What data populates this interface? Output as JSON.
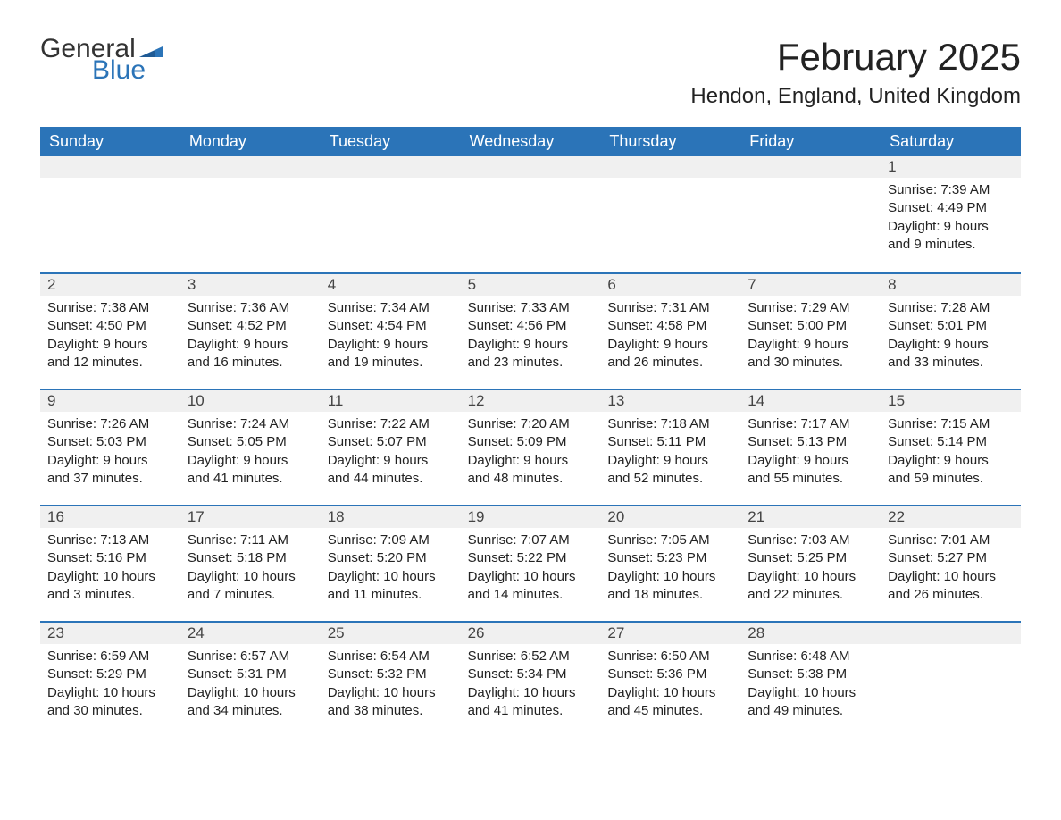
{
  "logo": {
    "text1": "General",
    "text2": "Blue",
    "flag_color": "#2b74b8"
  },
  "title": "February 2025",
  "location": "Hendon, England, United Kingdom",
  "colors": {
    "header_bg": "#2b74b8",
    "header_text": "#ffffff",
    "daynum_bg": "#f0f0f0",
    "border": "#2b74b8",
    "body_text": "#222222",
    "background": "#ffffff"
  },
  "day_headers": [
    "Sunday",
    "Monday",
    "Tuesday",
    "Wednesday",
    "Thursday",
    "Friday",
    "Saturday"
  ],
  "weeks": [
    [
      {
        "day": "",
        "lines": []
      },
      {
        "day": "",
        "lines": []
      },
      {
        "day": "",
        "lines": []
      },
      {
        "day": "",
        "lines": []
      },
      {
        "day": "",
        "lines": []
      },
      {
        "day": "",
        "lines": []
      },
      {
        "day": "1",
        "lines": [
          "Sunrise: 7:39 AM",
          "Sunset: 4:49 PM",
          "Daylight: 9 hours and 9 minutes."
        ]
      }
    ],
    [
      {
        "day": "2",
        "lines": [
          "Sunrise: 7:38 AM",
          "Sunset: 4:50 PM",
          "Daylight: 9 hours and 12 minutes."
        ]
      },
      {
        "day": "3",
        "lines": [
          "Sunrise: 7:36 AM",
          "Sunset: 4:52 PM",
          "Daylight: 9 hours and 16 minutes."
        ]
      },
      {
        "day": "4",
        "lines": [
          "Sunrise: 7:34 AM",
          "Sunset: 4:54 PM",
          "Daylight: 9 hours and 19 minutes."
        ]
      },
      {
        "day": "5",
        "lines": [
          "Sunrise: 7:33 AM",
          "Sunset: 4:56 PM",
          "Daylight: 9 hours and 23 minutes."
        ]
      },
      {
        "day": "6",
        "lines": [
          "Sunrise: 7:31 AM",
          "Sunset: 4:58 PM",
          "Daylight: 9 hours and 26 minutes."
        ]
      },
      {
        "day": "7",
        "lines": [
          "Sunrise: 7:29 AM",
          "Sunset: 5:00 PM",
          "Daylight: 9 hours and 30 minutes."
        ]
      },
      {
        "day": "8",
        "lines": [
          "Sunrise: 7:28 AM",
          "Sunset: 5:01 PM",
          "Daylight: 9 hours and 33 minutes."
        ]
      }
    ],
    [
      {
        "day": "9",
        "lines": [
          "Sunrise: 7:26 AM",
          "Sunset: 5:03 PM",
          "Daylight: 9 hours and 37 minutes."
        ]
      },
      {
        "day": "10",
        "lines": [
          "Sunrise: 7:24 AM",
          "Sunset: 5:05 PM",
          "Daylight: 9 hours and 41 minutes."
        ]
      },
      {
        "day": "11",
        "lines": [
          "Sunrise: 7:22 AM",
          "Sunset: 5:07 PM",
          "Daylight: 9 hours and 44 minutes."
        ]
      },
      {
        "day": "12",
        "lines": [
          "Sunrise: 7:20 AM",
          "Sunset: 5:09 PM",
          "Daylight: 9 hours and 48 minutes."
        ]
      },
      {
        "day": "13",
        "lines": [
          "Sunrise: 7:18 AM",
          "Sunset: 5:11 PM",
          "Daylight: 9 hours and 52 minutes."
        ]
      },
      {
        "day": "14",
        "lines": [
          "Sunrise: 7:17 AM",
          "Sunset: 5:13 PM",
          "Daylight: 9 hours and 55 minutes."
        ]
      },
      {
        "day": "15",
        "lines": [
          "Sunrise: 7:15 AM",
          "Sunset: 5:14 PM",
          "Daylight: 9 hours and 59 minutes."
        ]
      }
    ],
    [
      {
        "day": "16",
        "lines": [
          "Sunrise: 7:13 AM",
          "Sunset: 5:16 PM",
          "Daylight: 10 hours and 3 minutes."
        ]
      },
      {
        "day": "17",
        "lines": [
          "Sunrise: 7:11 AM",
          "Sunset: 5:18 PM",
          "Daylight: 10 hours and 7 minutes."
        ]
      },
      {
        "day": "18",
        "lines": [
          "Sunrise: 7:09 AM",
          "Sunset: 5:20 PM",
          "Daylight: 10 hours and 11 minutes."
        ]
      },
      {
        "day": "19",
        "lines": [
          "Sunrise: 7:07 AM",
          "Sunset: 5:22 PM",
          "Daylight: 10 hours and 14 minutes."
        ]
      },
      {
        "day": "20",
        "lines": [
          "Sunrise: 7:05 AM",
          "Sunset: 5:23 PM",
          "Daylight: 10 hours and 18 minutes."
        ]
      },
      {
        "day": "21",
        "lines": [
          "Sunrise: 7:03 AM",
          "Sunset: 5:25 PM",
          "Daylight: 10 hours and 22 minutes."
        ]
      },
      {
        "day": "22",
        "lines": [
          "Sunrise: 7:01 AM",
          "Sunset: 5:27 PM",
          "Daylight: 10 hours and 26 minutes."
        ]
      }
    ],
    [
      {
        "day": "23",
        "lines": [
          "Sunrise: 6:59 AM",
          "Sunset: 5:29 PM",
          "Daylight: 10 hours and 30 minutes."
        ]
      },
      {
        "day": "24",
        "lines": [
          "Sunrise: 6:57 AM",
          "Sunset: 5:31 PM",
          "Daylight: 10 hours and 34 minutes."
        ]
      },
      {
        "day": "25",
        "lines": [
          "Sunrise: 6:54 AM",
          "Sunset: 5:32 PM",
          "Daylight: 10 hours and 38 minutes."
        ]
      },
      {
        "day": "26",
        "lines": [
          "Sunrise: 6:52 AM",
          "Sunset: 5:34 PM",
          "Daylight: 10 hours and 41 minutes."
        ]
      },
      {
        "day": "27",
        "lines": [
          "Sunrise: 6:50 AM",
          "Sunset: 5:36 PM",
          "Daylight: 10 hours and 45 minutes."
        ]
      },
      {
        "day": "28",
        "lines": [
          "Sunrise: 6:48 AM",
          "Sunset: 5:38 PM",
          "Daylight: 10 hours and 49 minutes."
        ]
      },
      {
        "day": "",
        "lines": []
      }
    ]
  ]
}
